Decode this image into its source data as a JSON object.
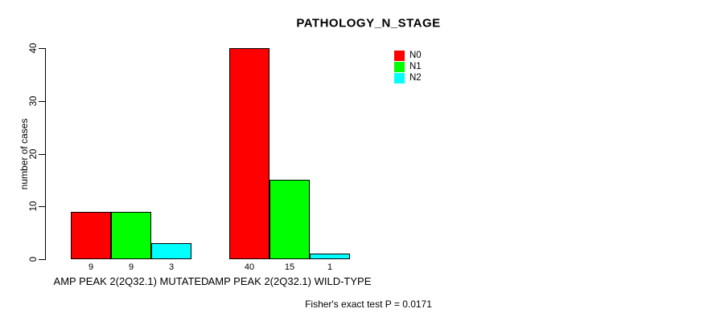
{
  "chart_data": {
    "type": "bar",
    "title": "PATHOLOGY_N_STAGE",
    "xlabel": "",
    "ylabel": "number of cases",
    "ylim": [
      0,
      40
    ],
    "yticks": [
      0,
      10,
      20,
      30,
      40
    ],
    "grid": false,
    "categories": [
      "AMP PEAK 2(2Q32.1) MUTATED",
      "AMP PEAK 2(2Q32.1) WILD-TYPE"
    ],
    "series": [
      {
        "name": "N0",
        "color": "#ff0000",
        "values": [
          9,
          40
        ]
      },
      {
        "name": "N1",
        "color": "#00ff00",
        "values": [
          9,
          15
        ]
      },
      {
        "name": "N2",
        "color": "#00ffff",
        "values": [
          3,
          1
        ]
      }
    ],
    "bar_value_labels": [
      [
        "9",
        "9",
        "3"
      ],
      [
        "40",
        "15",
        "1"
      ]
    ],
    "legend": {
      "position": "top-right",
      "entries": [
        "N0",
        "N1",
        "N2"
      ]
    },
    "annotation": "Fisher's exact test P = 0.0171"
  }
}
